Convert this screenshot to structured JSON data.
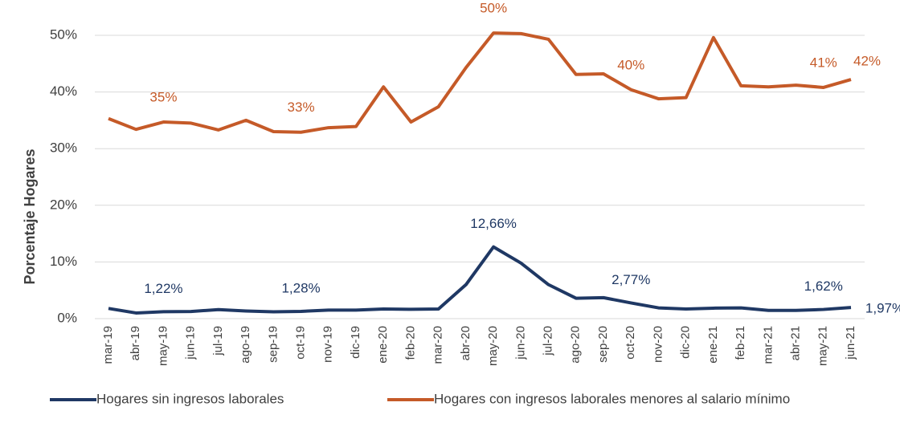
{
  "chart_data": {
    "type": "line",
    "y_label": "Porcentaje Hogares",
    "categories": [
      "mar-19",
      "abr-19",
      "may-19",
      "jun-19",
      "jul-19",
      "ago-19",
      "sep-19",
      "oct-19",
      "nov-19",
      "dic-19",
      "ene-20",
      "feb-20",
      "mar-20",
      "abr-20",
      "may-20",
      "jun-20",
      "jul-20",
      "ago-20",
      "sep-20",
      "oct-20",
      "nov-20",
      "dic-20",
      "ene-21",
      "feb-21",
      "mar-21",
      "abr-21",
      "may-21",
      "jun-21"
    ],
    "series": [
      {
        "name": "Hogares sin ingresos laborales",
        "color": "#1f3864",
        "values": [
          1.8,
          1.0,
          1.22,
          1.25,
          1.6,
          1.35,
          1.2,
          1.28,
          1.5,
          1.5,
          1.7,
          1.65,
          1.7,
          6.0,
          12.66,
          9.8,
          6.0,
          3.6,
          3.7,
          2.77,
          1.9,
          1.7,
          1.85,
          1.9,
          1.45,
          1.45,
          1.62,
          1.97
        ],
        "value_labels": [
          null,
          null,
          "1,22%",
          null,
          null,
          null,
          null,
          "1,28%",
          null,
          null,
          null,
          null,
          null,
          null,
          "12,66%",
          null,
          null,
          null,
          null,
          "2,77%",
          null,
          null,
          null,
          null,
          null,
          null,
          "1,62%",
          "1,97%"
        ]
      },
      {
        "name": "Hogares con ingresos laborales menores al salario mínimo",
        "color": "#c55a28",
        "values": [
          35.3,
          33.4,
          34.7,
          34.5,
          33.3,
          35.0,
          33.0,
          32.9,
          33.7,
          33.9,
          40.9,
          34.7,
          37.4,
          44.3,
          50.4,
          50.3,
          49.3,
          43.1,
          43.2,
          40.4,
          38.8,
          39.0,
          49.6,
          41.1,
          40.9,
          41.2,
          40.8,
          42.2
        ],
        "value_labels": [
          null,
          null,
          "35%",
          null,
          null,
          null,
          null,
          "33%",
          null,
          null,
          null,
          null,
          null,
          null,
          "50%",
          null,
          null,
          null,
          null,
          "40%",
          null,
          null,
          null,
          null,
          null,
          null,
          "41%",
          "42%"
        ]
      }
    ],
    "ylim": [
      0,
      55
    ],
    "yticks": [
      {
        "value": 0,
        "label": "0%"
      },
      {
        "value": 10,
        "label": "10%"
      },
      {
        "value": 20,
        "label": "20%"
      },
      {
        "value": 30,
        "label": "30%"
      },
      {
        "value": 40,
        "label": "40%"
      },
      {
        "value": 50,
        "label": "50%"
      }
    ],
    "grid": true,
    "legend": "bottom"
  }
}
